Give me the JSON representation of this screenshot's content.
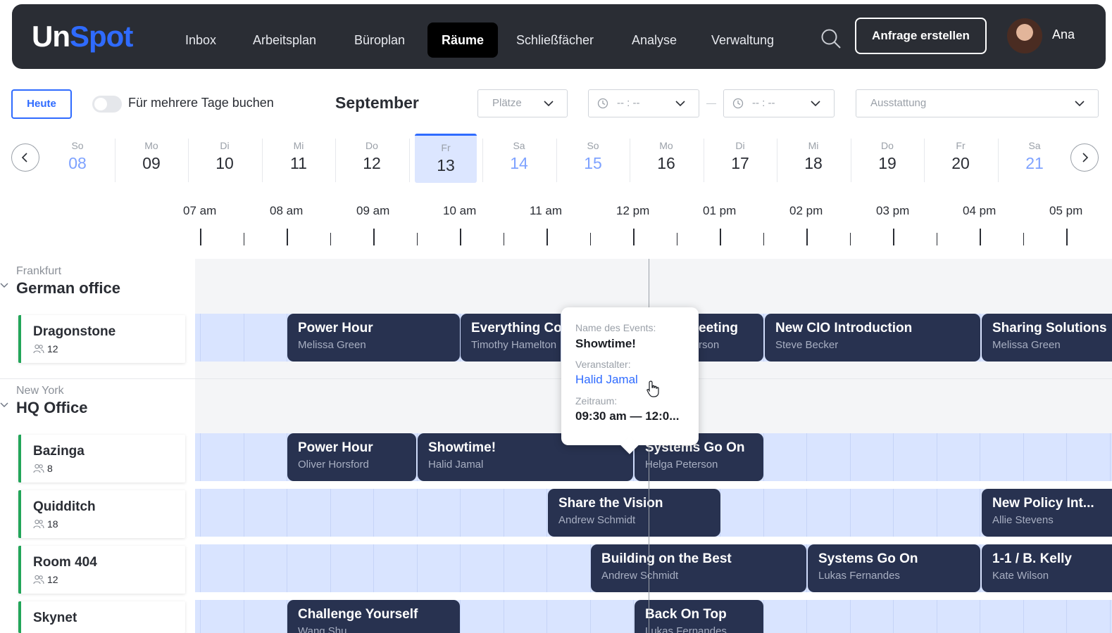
{
  "nav": {
    "logo_un": "Un",
    "logo_spot": "Spot",
    "items": [
      "Inbox",
      "Arbeitsplan",
      "Büroplan",
      "Räume",
      "Schließfächer",
      "Analyse",
      "Verwaltung"
    ],
    "active": "Räume",
    "cta": "Anfrage erstellen",
    "user": "Ana"
  },
  "toolbar": {
    "today": "Heute",
    "multi_day": "Für mehrere Tage buchen",
    "month": "September",
    "places": "Plätze",
    "time_from": "-- : --",
    "time_to": "-- : --",
    "equipment": "Ausstattung"
  },
  "days": [
    {
      "name": "So",
      "num": "08",
      "weekend": true
    },
    {
      "name": "Mo",
      "num": "09"
    },
    {
      "name": "Di",
      "num": "10"
    },
    {
      "name": "Mi",
      "num": "11"
    },
    {
      "name": "Do",
      "num": "12"
    },
    {
      "name": "Fr",
      "num": "13",
      "selected": true
    },
    {
      "name": "Sa",
      "num": "14",
      "weekend": true
    },
    {
      "name": "So",
      "num": "15",
      "weekend": true
    },
    {
      "name": "Mo",
      "num": "16"
    },
    {
      "name": "Di",
      "num": "17"
    },
    {
      "name": "Mi",
      "num": "18"
    },
    {
      "name": "Do",
      "num": "19"
    },
    {
      "name": "Fr",
      "num": "20"
    },
    {
      "name": "Sa",
      "num": "21",
      "weekend": true
    }
  ],
  "hours": [
    "07 am",
    "08 am",
    "09 am",
    "10 am",
    "11 am",
    "12 pm",
    "01 pm",
    "02 pm",
    "03 pm",
    "04 pm",
    "05 pm"
  ],
  "locations": [
    {
      "city": "Frankfurt",
      "office": "German office"
    },
    {
      "city": "New York",
      "office": "HQ Office"
    }
  ],
  "rooms": [
    {
      "name": "Dragonstone",
      "capacity": "12"
    },
    {
      "name": "Bazinga",
      "capacity": "8"
    },
    {
      "name": "Quidditch",
      "capacity": "18"
    },
    {
      "name": "Room 404",
      "capacity": "12"
    },
    {
      "name": "Skynet",
      "capacity": ""
    }
  ],
  "events": [
    {
      "room": "Dragonstone",
      "title": "Power Hour",
      "organizer": "Melissa Green"
    },
    {
      "room": "Dragonstone",
      "title": "Everything Co",
      "organizer": "Timothy Hamelton"
    },
    {
      "room": "Dragonstone",
      "title": "eeting",
      "organizer": "rson"
    },
    {
      "room": "Dragonstone",
      "title": "New CIO Introduction",
      "organizer": "Steve Becker"
    },
    {
      "room": "Dragonstone",
      "title": "Sharing Solutions",
      "organizer": "Melissa Green"
    },
    {
      "room": "Bazinga",
      "title": "Power Hour",
      "organizer": "Oliver Horsford"
    },
    {
      "room": "Bazinga",
      "title": "Showtime!",
      "organizer": "Halid Jamal"
    },
    {
      "room": "Bazinga",
      "title": "Systems Go On",
      "organizer": "Helga Peterson"
    },
    {
      "room": "Quidditch",
      "title": "Share the Vision",
      "organizer": "Andrew Schmidt"
    },
    {
      "room": "Quidditch",
      "title": "New Policy Int...",
      "organizer": "Allie Stevens"
    },
    {
      "room": "Room 404",
      "title": "Building on the Best",
      "organizer": "Andrew Schmidt"
    },
    {
      "room": "Room 404",
      "title": "Systems Go On",
      "organizer": "Lukas Fernandes"
    },
    {
      "room": "Room 404",
      "title": "1-1 / B. Kelly",
      "organizer": "Kate Wilson"
    },
    {
      "room": "Skynet",
      "title": "Challenge Yourself",
      "organizer": "Wang Shu"
    },
    {
      "room": "Skynet",
      "title": "Back On Top",
      "organizer": "Lukas Fernandes"
    }
  ],
  "tooltip": {
    "event_label": "Name des Events:",
    "event_value": "Showtime!",
    "organizer_label": "Veranstalter:",
    "organizer_value": "Halid Jamal",
    "period_label": "Zeitraum:",
    "period_value": "09:30 am — 12:0..."
  },
  "colors": {
    "nav_bg": "#2a2d34",
    "accent": "#2f6bff",
    "event_bg": "#283250",
    "slot_bg": "#d9e4ff",
    "room_bar": "#22a559"
  }
}
